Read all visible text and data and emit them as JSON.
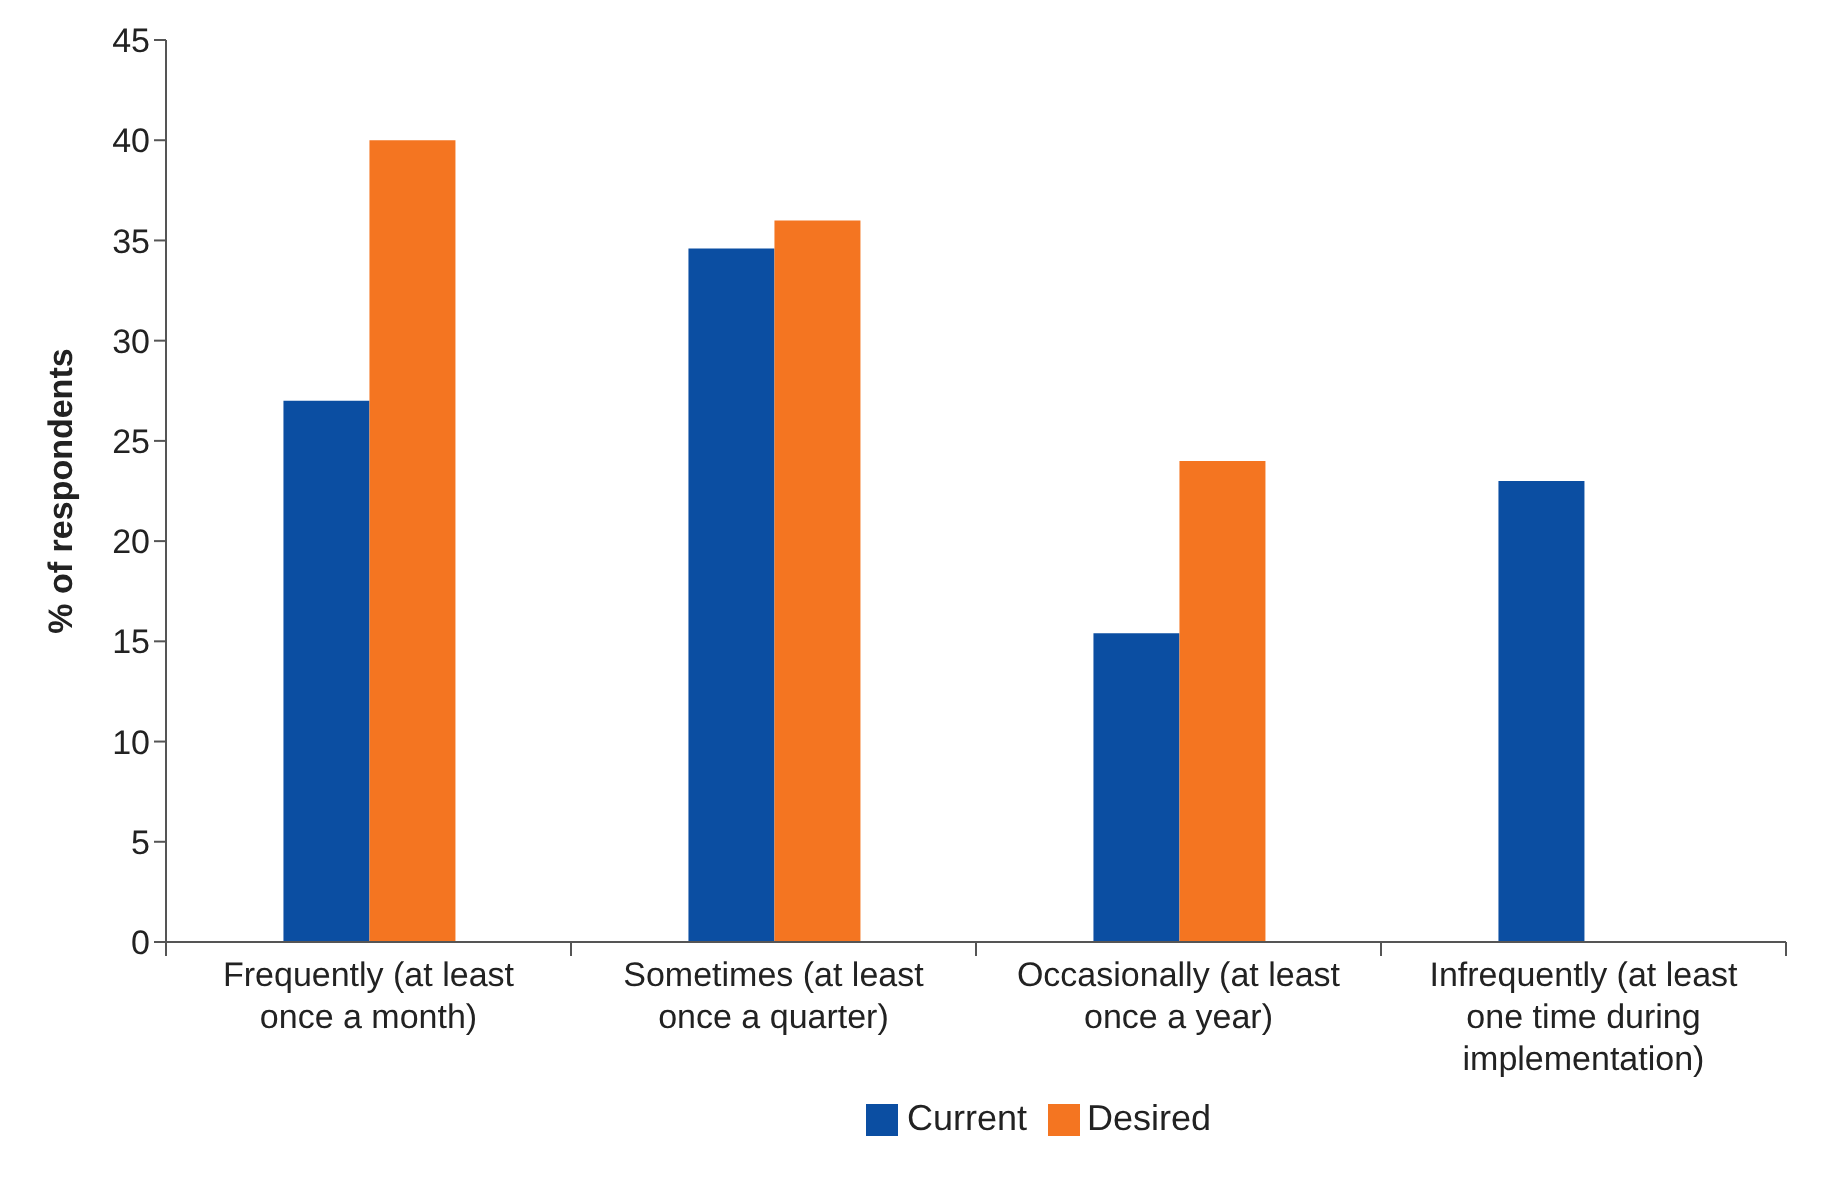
{
  "chart_data": {
    "type": "bar",
    "ylabel": "% of respondents",
    "categories": [
      "Frequently (at least once a month)",
      "Sometimes (at least once a quarter)",
      "Occasionally (at least once a year)",
      "Infrequently (at least one time during implementation)"
    ],
    "series": [
      {
        "name": "Current",
        "color": "#0b4ea2",
        "values": [
          27,
          34.6,
          15.4,
          23
        ]
      },
      {
        "name": "Desired",
        "color": "#f47521",
        "values": [
          40,
          36,
          24,
          null
        ]
      }
    ],
    "ylim": [
      0,
      45
    ],
    "yticks": [
      0,
      5,
      10,
      15,
      20,
      25,
      30,
      35,
      40,
      45
    ],
    "grid": false,
    "legend": "bottom"
  }
}
